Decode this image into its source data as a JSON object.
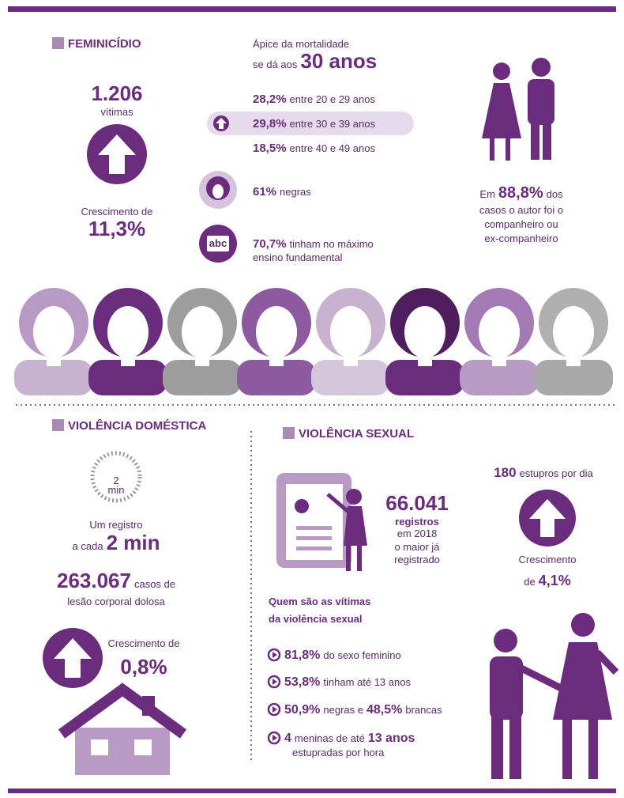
{
  "feminicidio": {
    "title": "FEMINICÍDIO",
    "victims_number": "1.206",
    "victims_label": "vítimas",
    "growth_label": "Crescimento de",
    "growth_value": "11,3%",
    "peak_line1": "Ápice da mortalidade",
    "peak_prefix": "se dá aos",
    "peak_value": "30 anos",
    "age_groups": [
      {
        "value": "28,2%",
        "label": "entre 20 e 29 anos"
      },
      {
        "value": "29,8%",
        "label": "entre 30 e 39 anos"
      },
      {
        "value": "18,5%",
        "label": "entre 40 e 49 anos"
      }
    ],
    "race_value": "61%",
    "race_label": "negras",
    "education_icon": "abc",
    "education_value": "70,7%",
    "education_label": "tinham no máximo",
    "education_label2": "ensino fundamental",
    "author_prefix": "Em",
    "author_value": "88,8%",
    "author_suffix": "dos",
    "author_lines": [
      "casos o autor foi o",
      "companheiro ou",
      "ex-companheiro"
    ]
  },
  "domestic": {
    "title": "VIOLÊNCIA DOMÉSTICA",
    "clock_digit": "2",
    "clock_unit": "min",
    "record_line1": "Um registro",
    "record_prefix": "a cada",
    "record_value": "2 min",
    "cases_value": "263.067",
    "cases_suffix": "casos de",
    "cases_line2": "lesão corporal dolosa",
    "growth_label": "Crescimento de",
    "growth_value": "0,8%"
  },
  "sexual": {
    "title": "VIOLÊNCIA SEXUAL",
    "rapes_value": "180",
    "rapes_label": "estupros por dia",
    "growth_label": "Crescimento",
    "growth_prefix": "de",
    "growth_value": "4,1%",
    "records_value": "66.041",
    "records_lines": [
      "registros",
      "em 2018",
      "o maior já",
      "registrado"
    ],
    "victims_title": [
      "Quem são as vítimas",
      "da violência sexual"
    ],
    "facts": [
      {
        "segments": [
          {
            "text": "81,8%",
            "strong": true
          },
          {
            "text": "do sexo feminino",
            "strong": false
          }
        ]
      },
      {
        "segments": [
          {
            "text": "53,8%",
            "strong": true
          },
          {
            "text": "tinham até 13 anos",
            "strong": false
          }
        ]
      },
      {
        "segments": [
          {
            "text": "50,9%",
            "strong": true
          },
          {
            "text": "negras e",
            "strong": false
          },
          {
            "text": "48,5%",
            "strong": true
          },
          {
            "text": "brancas",
            "strong": false
          }
        ]
      },
      {
        "segments": [
          {
            "text": "4",
            "strong": true
          },
          {
            "text": "meninas de até",
            "strong": false
          },
          {
            "text": "13 anos",
            "strong": true
          }
        ],
        "line2": "estupradas por hora"
      }
    ]
  }
}
